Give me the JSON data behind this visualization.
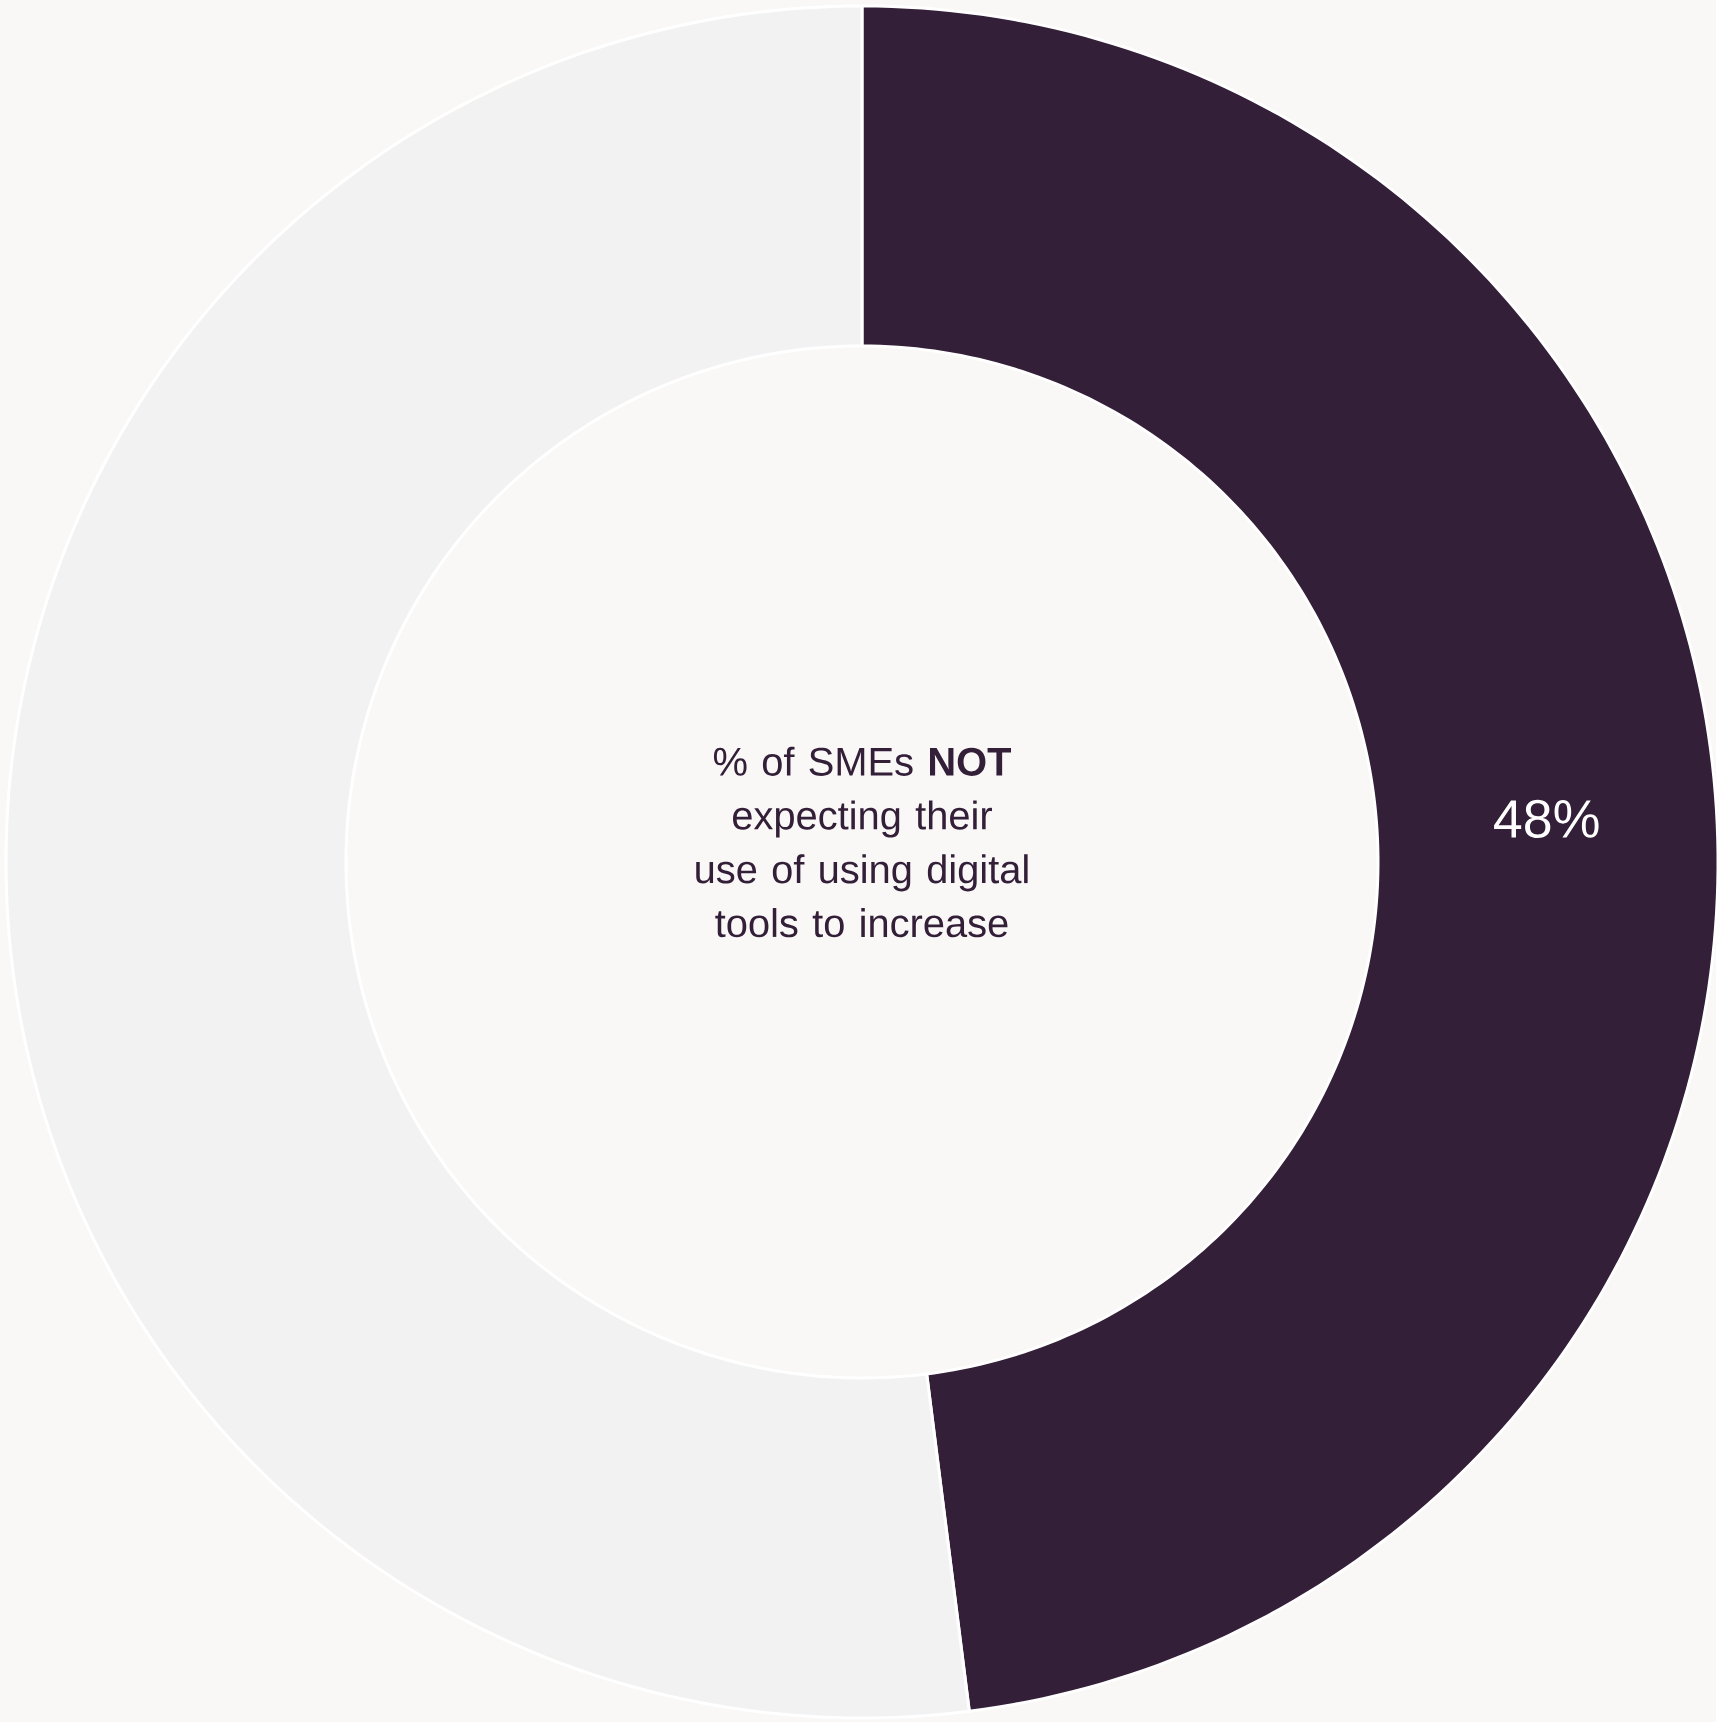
{
  "chart_data": {
    "type": "donut",
    "title": "% of SMEs **NOT** expecting their use of using digital tools to increase",
    "categories": [
      null,
      null
    ],
    "values": [
      48,
      52
    ],
    "colors": [
      "#331f37",
      "#f2f2f2"
    ],
    "value_labels": [
      "48%",
      null
    ]
  }
}
